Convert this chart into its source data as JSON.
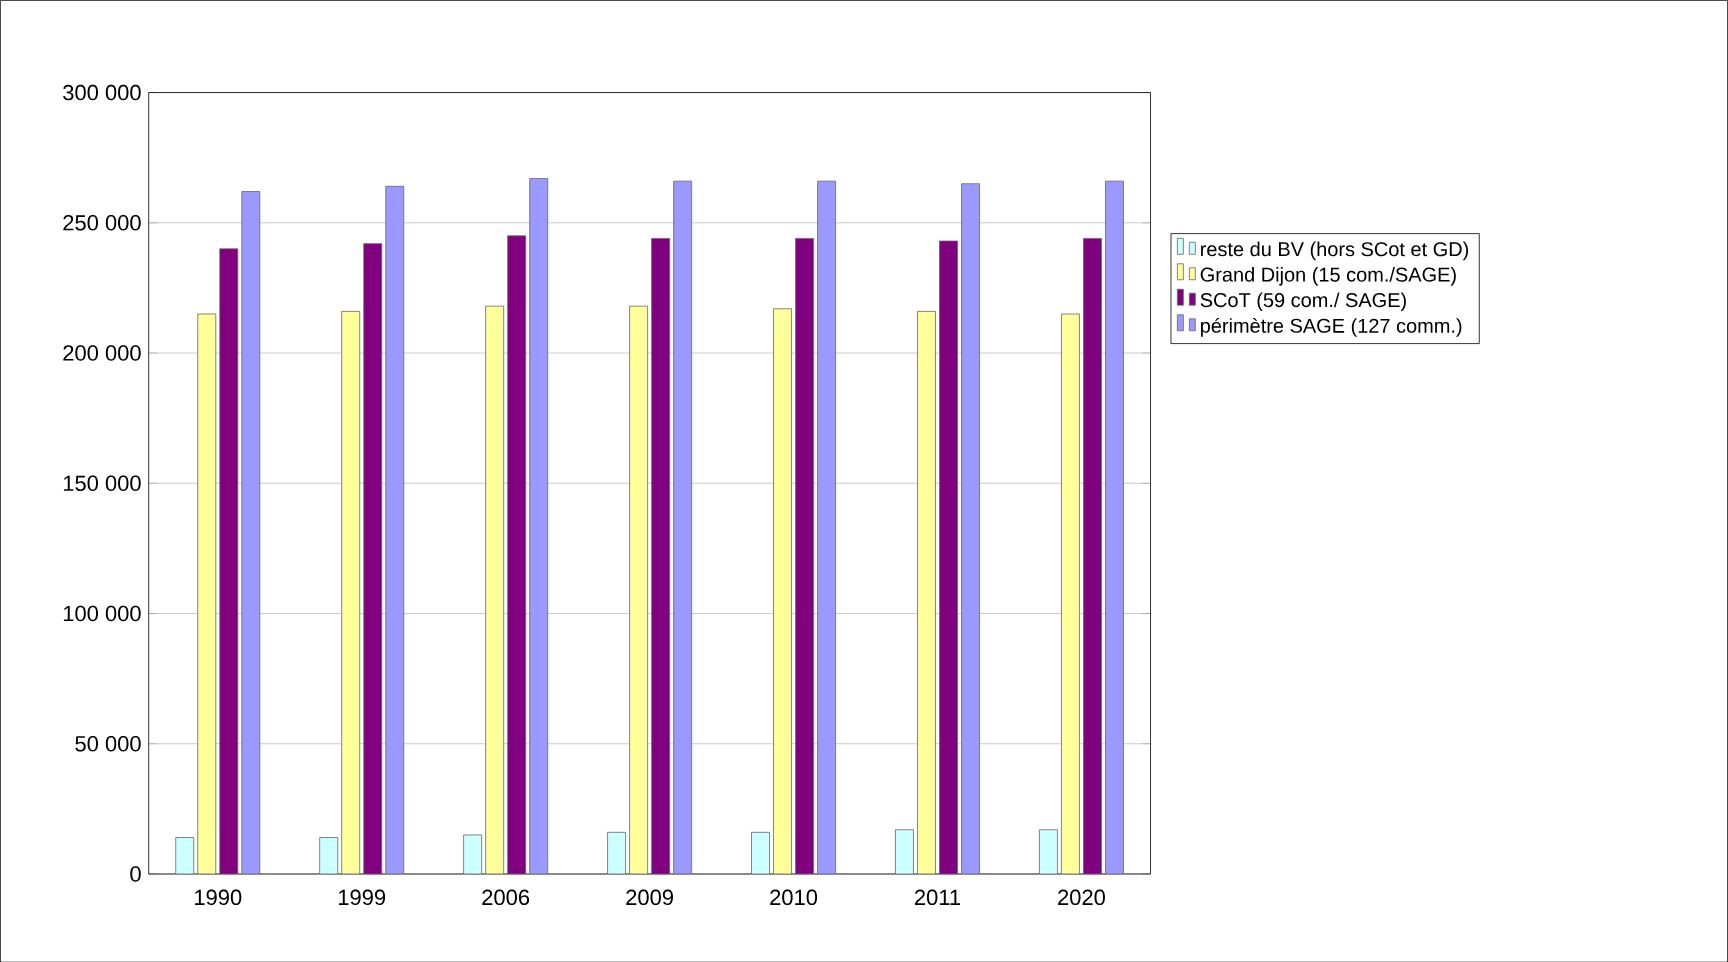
{
  "chart_data": {
    "type": "bar",
    "categories": [
      "1990",
      "1999",
      "2006",
      "2009",
      "2010",
      "2011",
      "2020"
    ],
    "series": [
      {
        "name": "reste du BV (hors SCot et GD)",
        "color": "#ccffff",
        "values": [
          14000,
          14000,
          15000,
          16000,
          16000,
          17000,
          17000
        ]
      },
      {
        "name": "Grand Dijon (15 com./SAGE)",
        "color": "#ffff99",
        "values": [
          215000,
          216000,
          218000,
          218000,
          217000,
          216000,
          215000
        ]
      },
      {
        "name": "SCoT (59 com./ SAGE)",
        "color": "#800080",
        "values": [
          240000,
          242000,
          245000,
          244000,
          244000,
          243000,
          244000
        ]
      },
      {
        "name": "périmètre SAGE (127 comm.)",
        "color": "#9999ff",
        "values": [
          262000,
          264000,
          267000,
          266000,
          266000,
          265000,
          266000
        ]
      }
    ],
    "ylim": [
      0,
      300000
    ],
    "yticks": [
      {
        "value": 0,
        "label": "0"
      },
      {
        "value": 50000,
        "label": "50 000"
      },
      {
        "value": 100000,
        "label": "100 000"
      },
      {
        "value": 150000,
        "label": "150 000"
      },
      {
        "value": 200000,
        "label": "200 000"
      },
      {
        "value": 250000,
        "label": "250 000"
      },
      {
        "value": 300000,
        "label": "300 000"
      }
    ],
    "grid": "y",
    "legend": "right"
  }
}
